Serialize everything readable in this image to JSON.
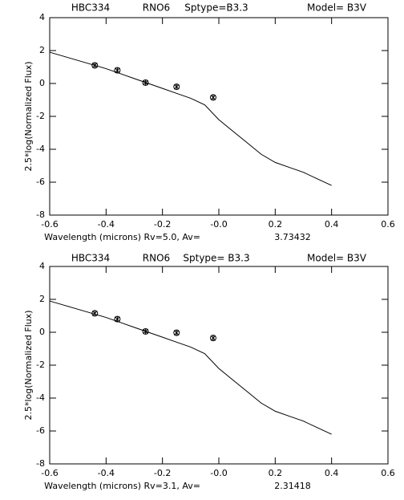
{
  "chart_data": [
    {
      "type": "line",
      "header": [
        "HBC334",
        "RNO6",
        "Sptype=B3.3",
        "Model= B3V"
      ],
      "x_label": "Wavelength (microns) Rv=5.0, Av=",
      "av_value": "3.73432",
      "y_label": "2.5*log(Normalized Flux)",
      "xlim": [
        -0.6,
        0.6
      ],
      "xticks": [
        -0.6,
        -0.4,
        -0.2,
        {
          "value": 0,
          "label": "-0.0"
        },
        0.2,
        0.4,
        0.6
      ],
      "ylim": [
        -8,
        4
      ],
      "yticks": [
        -8,
        -6,
        -4,
        -2,
        0,
        2,
        4
      ],
      "series": [
        {
          "type": "line",
          "color": "#000000",
          "x": [
            -0.6,
            -0.55,
            -0.5,
            -0.45,
            -0.4,
            -0.35,
            -0.3,
            -0.25,
            -0.2,
            -0.15,
            -0.1,
            -0.05,
            0,
            0.05,
            0.1,
            0.15,
            0.2,
            0.25,
            0.3,
            0.35,
            0.4
          ],
          "values": [
            1.9,
            1.65,
            1.4,
            1.15,
            0.9,
            0.6,
            0.3,
            0.0,
            -0.3,
            -0.6,
            -0.9,
            -1.3,
            -2.2,
            -2.9,
            -3.6,
            -4.3,
            -4.8,
            -5.1,
            -5.4,
            -5.8,
            -6.2
          ]
        },
        {
          "type": "scatter",
          "color": "#000000",
          "x": [
            -0.44,
            -0.36,
            -0.26,
            -0.15,
            -0.02
          ],
          "values": [
            1.1,
            0.8,
            0.05,
            -0.2,
            -0.85
          ]
        }
      ]
    },
    {
      "type": "line",
      "header": [
        "HBC334",
        "RNO6",
        "Sptype= B3.3",
        "Model= B3V"
      ],
      "x_label": "Wavelength (microns) Rv=3.1,  Av=",
      "av_value": "2.31418",
      "y_label": "2.5*log(Normalized Flux)",
      "xlim": [
        -0.6,
        0.6
      ],
      "xticks": [
        -0.6,
        -0.4,
        -0.2,
        {
          "value": 0,
          "label": "-0.0"
        },
        0.2,
        0.4,
        0.6
      ],
      "ylim": [
        -8,
        4
      ],
      "yticks": [
        -8,
        -6,
        -4,
        -2,
        0,
        2,
        4
      ],
      "series": [
        {
          "type": "line",
          "color": "#000000",
          "x": [
            -0.6,
            -0.55,
            -0.5,
            -0.45,
            -0.4,
            -0.35,
            -0.3,
            -0.25,
            -0.2,
            -0.15,
            -0.1,
            -0.05,
            0,
            0.05,
            0.1,
            0.15,
            0.2,
            0.25,
            0.3,
            0.35,
            0.4
          ],
          "values": [
            1.9,
            1.65,
            1.4,
            1.15,
            0.9,
            0.6,
            0.3,
            0.0,
            -0.3,
            -0.6,
            -0.9,
            -1.3,
            -2.2,
            -2.9,
            -3.6,
            -4.3,
            -4.8,
            -5.1,
            -5.4,
            -5.8,
            -6.2
          ]
        },
        {
          "type": "scatter",
          "color": "#000000",
          "x": [
            -0.44,
            -0.36,
            -0.26,
            -0.15,
            -0.02
          ],
          "values": [
            1.15,
            0.8,
            0.05,
            -0.03,
            -0.35
          ]
        }
      ]
    }
  ]
}
